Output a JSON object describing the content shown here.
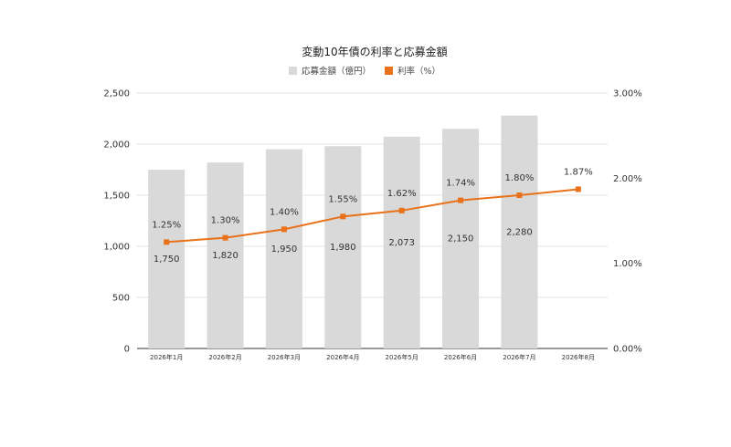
{
  "chart_data": {
    "type": "bar+line",
    "title": "変動10年債の利率と応募金額",
    "categories": [
      "2026年1月",
      "2026年2月",
      "2026年3月",
      "2026年4月",
      "2026年5月",
      "2026年6月",
      "2026年7月",
      "2026年8月"
    ],
    "series": [
      {
        "name": "応募金額（億円）",
        "type": "bar",
        "axis": "left",
        "color": "#d9d9d9",
        "values": [
          1750,
          1820,
          1950,
          1980,
          2073,
          2150,
          2280,
          null
        ],
        "labels": [
          "1,750",
          "1,820",
          "1,950",
          "1,980",
          "2,073",
          "2,150",
          "2,280",
          ""
        ]
      },
      {
        "name": "利率（%）",
        "type": "line",
        "axis": "right",
        "color": "#e8711a",
        "values": [
          1.25,
          1.3,
          1.4,
          1.55,
          1.62,
          1.74,
          1.8,
          1.87
        ],
        "labels": [
          "1.25%",
          "1.30%",
          "1.40%",
          "1.55%",
          "1.62%",
          "1.74%",
          "1.80%",
          "1.87%"
        ]
      }
    ],
    "y_left": {
      "range": [
        0,
        2500
      ],
      "ticks": [
        0,
        500,
        1000,
        1500,
        2000,
        2500
      ],
      "tick_labels": [
        "0",
        "500",
        "1,000",
        "1,500",
        "2,000",
        "2,500"
      ]
    },
    "y_right": {
      "range": [
        0,
        3
      ],
      "ticks": [
        0,
        1,
        2,
        3
      ],
      "tick_labels": [
        "0.00%",
        "1.00%",
        "2.00%",
        "3.00%"
      ]
    },
    "grid": true,
    "legend_position": "top-center"
  }
}
